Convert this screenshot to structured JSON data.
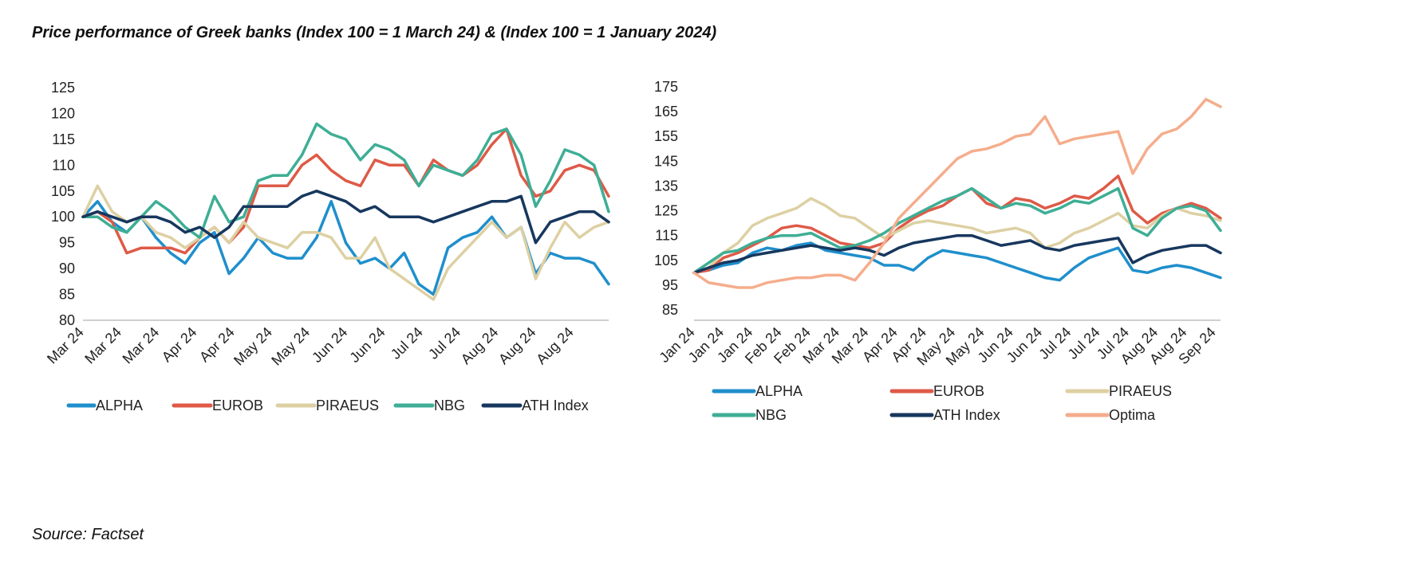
{
  "title": "Price performance of Greek banks (Index 100 = 1 March 24) & (Index 100 = 1 January 2024)",
  "source": "Source: Factset",
  "colors": {
    "ALPHA": "#1f8fcc",
    "EUROB": "#de5a47",
    "PIRAEUS": "#ddd0a3",
    "NBG": "#3eae95",
    "ATH Index": "#17375e",
    "Optima": "#f5ad8c"
  },
  "chart_data": [
    {
      "type": "line",
      "ylim": [
        80,
        125
      ],
      "yticks": [
        80,
        85,
        90,
        95,
        100,
        105,
        110,
        115,
        120,
        125
      ],
      "xticklabels": [
        "Mar 24",
        "Mar 24",
        "Mar 24",
        "Apr 24",
        "Apr 24",
        "May 24",
        "May 24",
        "Jun 24",
        "Jun 24",
        "Jul 24",
        "Jul 24",
        "Aug 24",
        "Aug 24",
        "Aug 24"
      ],
      "grid": false,
      "legend": "bottom",
      "series": [
        {
          "name": "ALPHA",
          "values": [
            100,
            103,
            99,
            97,
            100,
            96,
            93,
            91,
            95,
            97,
            89,
            92,
            96,
            93,
            92,
            92,
            96,
            103,
            95,
            91,
            92,
            90,
            93,
            87,
            85,
            94,
            96,
            97,
            100,
            96,
            98,
            89,
            93,
            92,
            92,
            91,
            87
          ]
        },
        {
          "name": "EUROB",
          "values": [
            100,
            101,
            99,
            93,
            94,
            94,
            94,
            93,
            96,
            98,
            95,
            98,
            106,
            106,
            106,
            110,
            112,
            109,
            107,
            106,
            111,
            110,
            110,
            106,
            111,
            109,
            108,
            110,
            114,
            117,
            108,
            104,
            105,
            109,
            110,
            109,
            104
          ]
        },
        {
          "name": "PIRAEUS",
          "values": [
            100,
            106,
            101,
            99,
            100,
            97,
            96,
            94,
            96,
            98,
            95,
            99,
            96,
            95,
            94,
            97,
            97,
            96,
            92,
            92,
            96,
            90,
            88,
            86,
            84,
            90,
            93,
            96,
            99,
            96,
            98,
            88,
            94,
            99,
            96,
            98,
            99
          ]
        },
        {
          "name": "NBG",
          "values": [
            100,
            100,
            98,
            97,
            100,
            103,
            101,
            98,
            96,
            104,
            99,
            100,
            107,
            108,
            108,
            112,
            118,
            116,
            115,
            111,
            114,
            113,
            111,
            106,
            110,
            109,
            108,
            111,
            116,
            117,
            112,
            102,
            107,
            113,
            112,
            110,
            101
          ]
        },
        {
          "name": "ATH Index",
          "values": [
            100,
            101,
            100,
            99,
            100,
            100,
            99,
            97,
            98,
            96,
            98,
            102,
            102,
            102,
            102,
            104,
            105,
            104,
            103,
            101,
            102,
            100,
            100,
            100,
            99,
            100,
            101,
            102,
            103,
            103,
            104,
            95,
            99,
            100,
            101,
            101,
            99
          ]
        }
      ]
    },
    {
      "type": "line",
      "ylim": [
        85,
        175
      ],
      "yticks": [
        85,
        95,
        105,
        115,
        125,
        135,
        145,
        155,
        165,
        175
      ],
      "xticklabels": [
        "Jan 24",
        "Jan 24",
        "Jan 24",
        "Feb 24",
        "Feb 24",
        "Mar 24",
        "Mar 24",
        "Apr 24",
        "Apr 24",
        "May 24",
        "May 24",
        "Jun 24",
        "Jun 24",
        "Jul 24",
        "Jul 24",
        "Jul 24",
        "Aug 24",
        "Aug 24",
        "Sep 24"
      ],
      "grid": false,
      "legend": "bottom",
      "series": [
        {
          "name": "ALPHA",
          "values": [
            100,
            101,
            103,
            104,
            108,
            110,
            109,
            111,
            112,
            109,
            108,
            107,
            106,
            103,
            103,
            101,
            106,
            109,
            108,
            107,
            106,
            104,
            102,
            100,
            98,
            97,
            102,
            106,
            108,
            110,
            101,
            100,
            102,
            103,
            102,
            100,
            98
          ]
        },
        {
          "name": "EUROB",
          "values": [
            100,
            101,
            106,
            108,
            111,
            114,
            118,
            119,
            118,
            115,
            112,
            111,
            110,
            112,
            118,
            122,
            125,
            127,
            131,
            134,
            128,
            126,
            130,
            129,
            126,
            128,
            131,
            130,
            134,
            139,
            125,
            120,
            124,
            126,
            128,
            126,
            122
          ]
        },
        {
          "name": "PIRAEUS",
          "values": [
            100,
            102,
            108,
            112,
            119,
            122,
            124,
            126,
            130,
            127,
            123,
            122,
            118,
            114,
            117,
            120,
            121,
            120,
            119,
            118,
            116,
            117,
            118,
            116,
            110,
            112,
            116,
            118,
            121,
            124,
            119,
            118,
            123,
            126,
            124,
            123,
            121
          ]
        },
        {
          "name": "NBG",
          "values": [
            100,
            104,
            108,
            109,
            112,
            114,
            115,
            115,
            116,
            113,
            110,
            111,
            113,
            116,
            120,
            123,
            126,
            129,
            131,
            134,
            130,
            126,
            128,
            127,
            124,
            126,
            129,
            128,
            131,
            134,
            118,
            115,
            122,
            126,
            127,
            125,
            117
          ]
        },
        {
          "name": "ATH Index",
          "values": [
            100,
            102,
            104,
            105,
            107,
            108,
            109,
            110,
            111,
            110,
            109,
            110,
            109,
            107,
            110,
            112,
            113,
            114,
            115,
            115,
            113,
            111,
            112,
            113,
            110,
            109,
            111,
            112,
            113,
            114,
            104,
            107,
            109,
            110,
            111,
            111,
            108
          ]
        },
        {
          "name": "Optima",
          "values": [
            100,
            96,
            95,
            94,
            94,
            96,
            97,
            98,
            98,
            99,
            99,
            97,
            104,
            112,
            122,
            128,
            134,
            140,
            146,
            149,
            150,
            152,
            155,
            156,
            163,
            152,
            154,
            155,
            156,
            157,
            140,
            150,
            156,
            158,
            163,
            170,
            167
          ]
        }
      ]
    }
  ]
}
